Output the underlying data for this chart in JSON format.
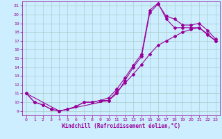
{
  "xlabel": "Windchill (Refroidissement éolien,°C)",
  "bg_color": "#cceeff",
  "line_color": "#990099",
  "grid_color": "#aacccc",
  "xlim": [
    -0.5,
    23.5
  ],
  "ylim": [
    8.5,
    21.5
  ],
  "xticks": [
    0,
    1,
    2,
    3,
    4,
    5,
    6,
    7,
    8,
    9,
    10,
    11,
    12,
    13,
    14,
    15,
    16,
    17,
    18,
    19,
    20,
    21,
    22,
    23
  ],
  "yticks": [
    9,
    10,
    11,
    12,
    13,
    14,
    15,
    16,
    17,
    18,
    19,
    20,
    21
  ],
  "line1_x": [
    0,
    1,
    2,
    3,
    4,
    5,
    6,
    7,
    8,
    9,
    10,
    11,
    12,
    13,
    14,
    15,
    16,
    17,
    18,
    19,
    20,
    21,
    22,
    23
  ],
  "line1_y": [
    11.0,
    10.0,
    9.7,
    9.2,
    9.0,
    9.2,
    9.5,
    10.0,
    10.0,
    10.2,
    10.2,
    11.0,
    12.5,
    14.0,
    15.2,
    20.2,
    21.2,
    19.8,
    19.5,
    18.8,
    18.8,
    19.0,
    18.2,
    17.2
  ],
  "line2_x": [
    0,
    1,
    2,
    3,
    4,
    5,
    6,
    7,
    8,
    9,
    10,
    11,
    12,
    13,
    14,
    15,
    16,
    17,
    18,
    19,
    20,
    21,
    22,
    23
  ],
  "line2_y": [
    11.0,
    10.0,
    9.7,
    9.2,
    9.0,
    9.2,
    9.5,
    10.0,
    10.0,
    10.2,
    10.5,
    11.5,
    12.8,
    14.2,
    15.5,
    20.5,
    21.3,
    19.5,
    18.5,
    18.5,
    18.5,
    18.5,
    17.7,
    17.0
  ],
  "line3_x": [
    0,
    4,
    10,
    11,
    12,
    13,
    14,
    15,
    16,
    17,
    18,
    19,
    20,
    21,
    22,
    23
  ],
  "line3_y": [
    11.0,
    9.0,
    10.2,
    11.2,
    12.2,
    13.2,
    14.3,
    15.5,
    16.5,
    17.0,
    17.5,
    18.0,
    18.3,
    18.5,
    17.8,
    17.0
  ],
  "markersize": 2.0,
  "linewidth": 0.8,
  "tick_fontsize": 4.5,
  "xlabel_fontsize": 5.5
}
